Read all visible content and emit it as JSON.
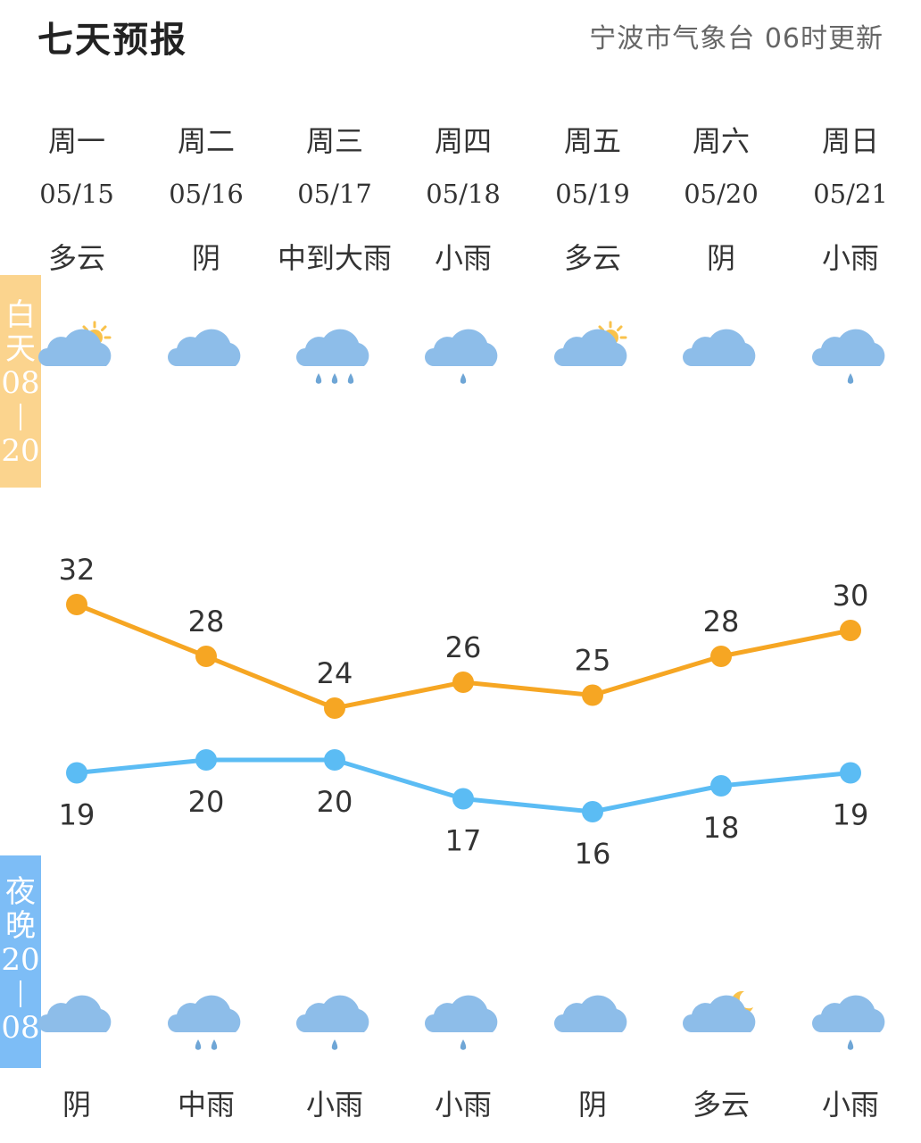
{
  "header": {
    "title": "七天预报",
    "source": "宁波市气象台 06时更新"
  },
  "labels": {
    "day_tag": [
      "白",
      "天",
      "08",
      "20"
    ],
    "night_tag": [
      "夜",
      "晚",
      "20",
      "08"
    ]
  },
  "days": [
    {
      "weekday": "周一",
      "date": "05/15",
      "day_cond": "多云",
      "day_icon": "partly-cloudy-day-icon",
      "night_cond": "阴",
      "night_icon": "cloudy-icon"
    },
    {
      "weekday": "周二",
      "date": "05/16",
      "day_cond": "阴",
      "day_icon": "cloudy-icon",
      "night_cond": "中雨",
      "night_icon": "moderate-rain-icon"
    },
    {
      "weekday": "周三",
      "date": "05/17",
      "day_cond": "中到大雨",
      "day_icon": "heavy-rain-icon",
      "night_cond": "小雨",
      "night_icon": "light-rain-icon"
    },
    {
      "weekday": "周四",
      "date": "05/18",
      "day_cond": "小雨",
      "day_icon": "light-rain-icon",
      "night_cond": "小雨",
      "night_icon": "light-rain-icon"
    },
    {
      "weekday": "周五",
      "date": "05/19",
      "day_cond": "多云",
      "day_icon": "partly-cloudy-day-icon",
      "night_cond": "阴",
      "night_icon": "cloudy-icon"
    },
    {
      "weekday": "周六",
      "date": "05/20",
      "day_cond": "阴",
      "day_icon": "cloudy-icon",
      "night_cond": "多云",
      "night_icon": "partly-cloudy-night-icon"
    },
    {
      "weekday": "周日",
      "date": "05/21",
      "day_cond": "小雨",
      "day_icon": "light-rain-icon",
      "night_cond": "小雨",
      "night_icon": "light-rain-icon"
    }
  ],
  "chart_data": {
    "type": "line",
    "categories": [
      "05/15",
      "05/16",
      "05/17",
      "05/18",
      "05/19",
      "05/20",
      "05/21"
    ],
    "series": [
      {
        "name": "白天",
        "values": [
          32,
          28,
          24,
          26,
          25,
          28,
          30
        ],
        "color": "#f6a623"
      },
      {
        "name": "夜晚",
        "values": [
          19,
          20,
          20,
          17,
          16,
          18,
          19
        ],
        "color": "#5bbcf4"
      }
    ],
    "grid": false,
    "data_labels": true
  },
  "colors": {
    "high_line": "#f6a623",
    "low_line": "#5bbcf4",
    "cloud": "#8dbde9",
    "sun": "#f9c24b",
    "rain": "#6fa6d6"
  }
}
